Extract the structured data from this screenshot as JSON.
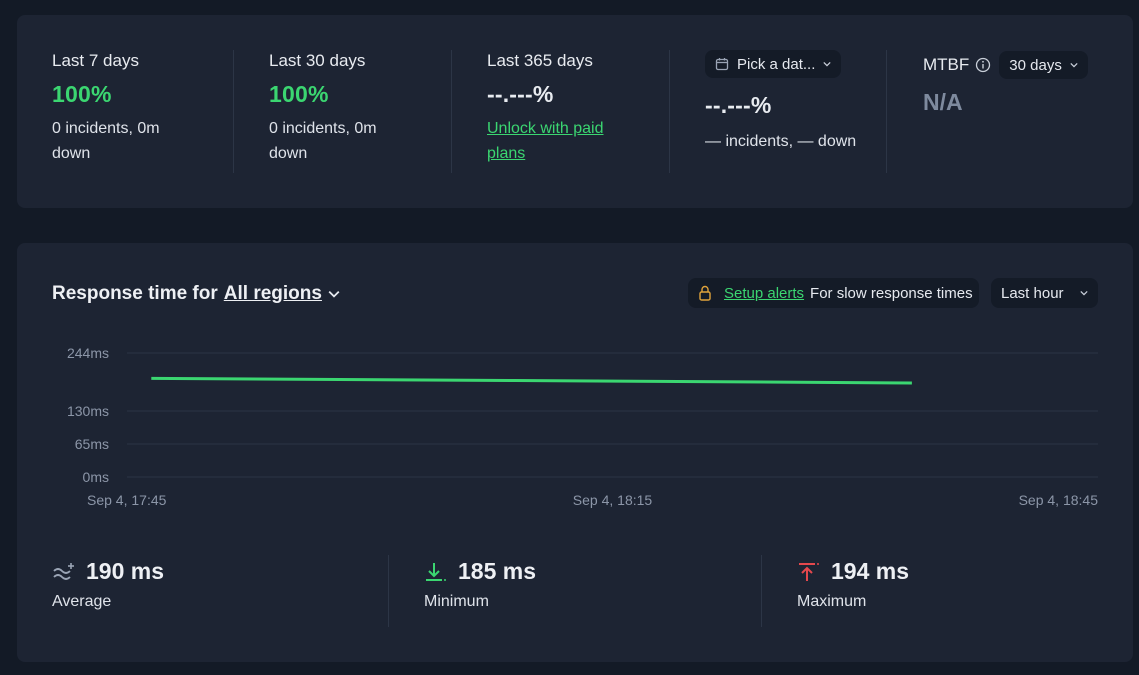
{
  "stats": {
    "last7": {
      "label": "Last 7 days",
      "value": "100%",
      "line1": "0 incidents, 0m",
      "line2": "down"
    },
    "last30": {
      "label": "Last 30 days",
      "value": "100%",
      "line1": "0 incidents, 0m",
      "line2": "down"
    },
    "last365": {
      "label": "Last 365 days",
      "value": "--.---%",
      "link1": "Unlock with paid",
      "link2": "plans"
    },
    "custom": {
      "picker_label": "Pick a dat...",
      "value": "--.---%",
      "sub": "— incidents, — down"
    },
    "mtbf": {
      "label": "MTBF",
      "period": "30 days",
      "value": "N/A"
    }
  },
  "response": {
    "title_prefix": "Response time for",
    "regions": "All regions",
    "setup_alerts": "Setup alerts",
    "alerts_suffix": "For slow response times",
    "period": "Last hour"
  },
  "chart_data": {
    "type": "line",
    "y_ticks": [
      {
        "label": "244ms",
        "value": 244
      },
      {
        "label": "130ms",
        "value": 130
      },
      {
        "label": "65ms",
        "value": 65
      },
      {
        "label": "0ms",
        "value": 0
      }
    ],
    "x_ticks": [
      {
        "label": "Sep 4, 17:45",
        "minute": 0
      },
      {
        "label": "Sep 4, 18:15",
        "minute": 30
      },
      {
        "label": "Sep 4, 18:45",
        "minute": 60
      }
    ],
    "series": [
      {
        "color": "#3bd671",
        "points": [
          {
            "minute": 1.5,
            "ms": 194
          },
          {
            "minute": 24,
            "ms": 190
          },
          {
            "minute": 48.5,
            "ms": 185
          }
        ]
      }
    ],
    "ylim": [
      0,
      244
    ],
    "grid": true
  },
  "metrics": {
    "average": {
      "value": "190 ms",
      "label": "Average"
    },
    "minimum": {
      "value": "185 ms",
      "label": "Minimum"
    },
    "maximum": {
      "value": "194 ms",
      "label": "Maximum"
    }
  },
  "colors": {
    "green": "#3bd671",
    "red": "#e5484d",
    "muted": "#7e8a9e"
  }
}
